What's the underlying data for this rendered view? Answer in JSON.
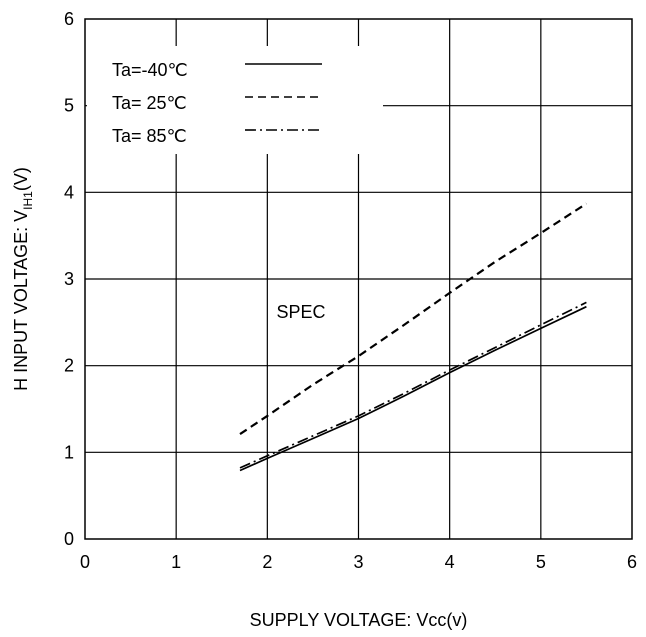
{
  "chart_data": {
    "type": "line",
    "title": "",
    "xlabel": "SUPPLY VOLTAGE: Vcc(v)",
    "ylabel_main": "H INPUT VOLTAGE: V",
    "ylabel_sub": "IH1",
    "ylabel_tail": "(V)",
    "xlim": [
      0,
      6
    ],
    "ylim": [
      0,
      6
    ],
    "xticks": [
      "0",
      "1",
      "2",
      "3",
      "4",
      "5",
      "6"
    ],
    "yticks": [
      "0",
      "1",
      "2",
      "3",
      "4",
      "5",
      "6"
    ],
    "grid": true,
    "legend_position": "top-left",
    "annotations": [
      {
        "text": "SPEC",
        "x": 2.1,
        "y": 2.55
      }
    ],
    "series": [
      {
        "name": "Ta=-40℃",
        "dash": "solid",
        "color": "#000000",
        "x": [
          1.7,
          2.0,
          2.5,
          3.0,
          3.5,
          4.0,
          4.5,
          5.0,
          5.5
        ],
        "y": [
          0.79,
          0.93,
          1.16,
          1.39,
          1.65,
          1.92,
          2.18,
          2.43,
          2.68
        ]
      },
      {
        "name": "Ta= 25℃",
        "dash": "dashed",
        "color": "#000000",
        "x": [
          1.7,
          2.0,
          2.5,
          3.0,
          3.5,
          4.0,
          4.5,
          5.0,
          5.5
        ],
        "y": [
          1.21,
          1.42,
          1.78,
          2.11,
          2.47,
          2.84,
          3.2,
          3.53,
          3.87
        ]
      },
      {
        "name": "Ta= 85℃",
        "dash": "dashdot",
        "color": "#000000",
        "x": [
          1.7,
          2.0,
          2.5,
          3.0,
          3.5,
          4.0,
          4.5,
          5.0,
          5.5
        ],
        "y": [
          0.82,
          0.96,
          1.19,
          1.42,
          1.68,
          1.95,
          2.21,
          2.47,
          2.73
        ]
      }
    ]
  }
}
